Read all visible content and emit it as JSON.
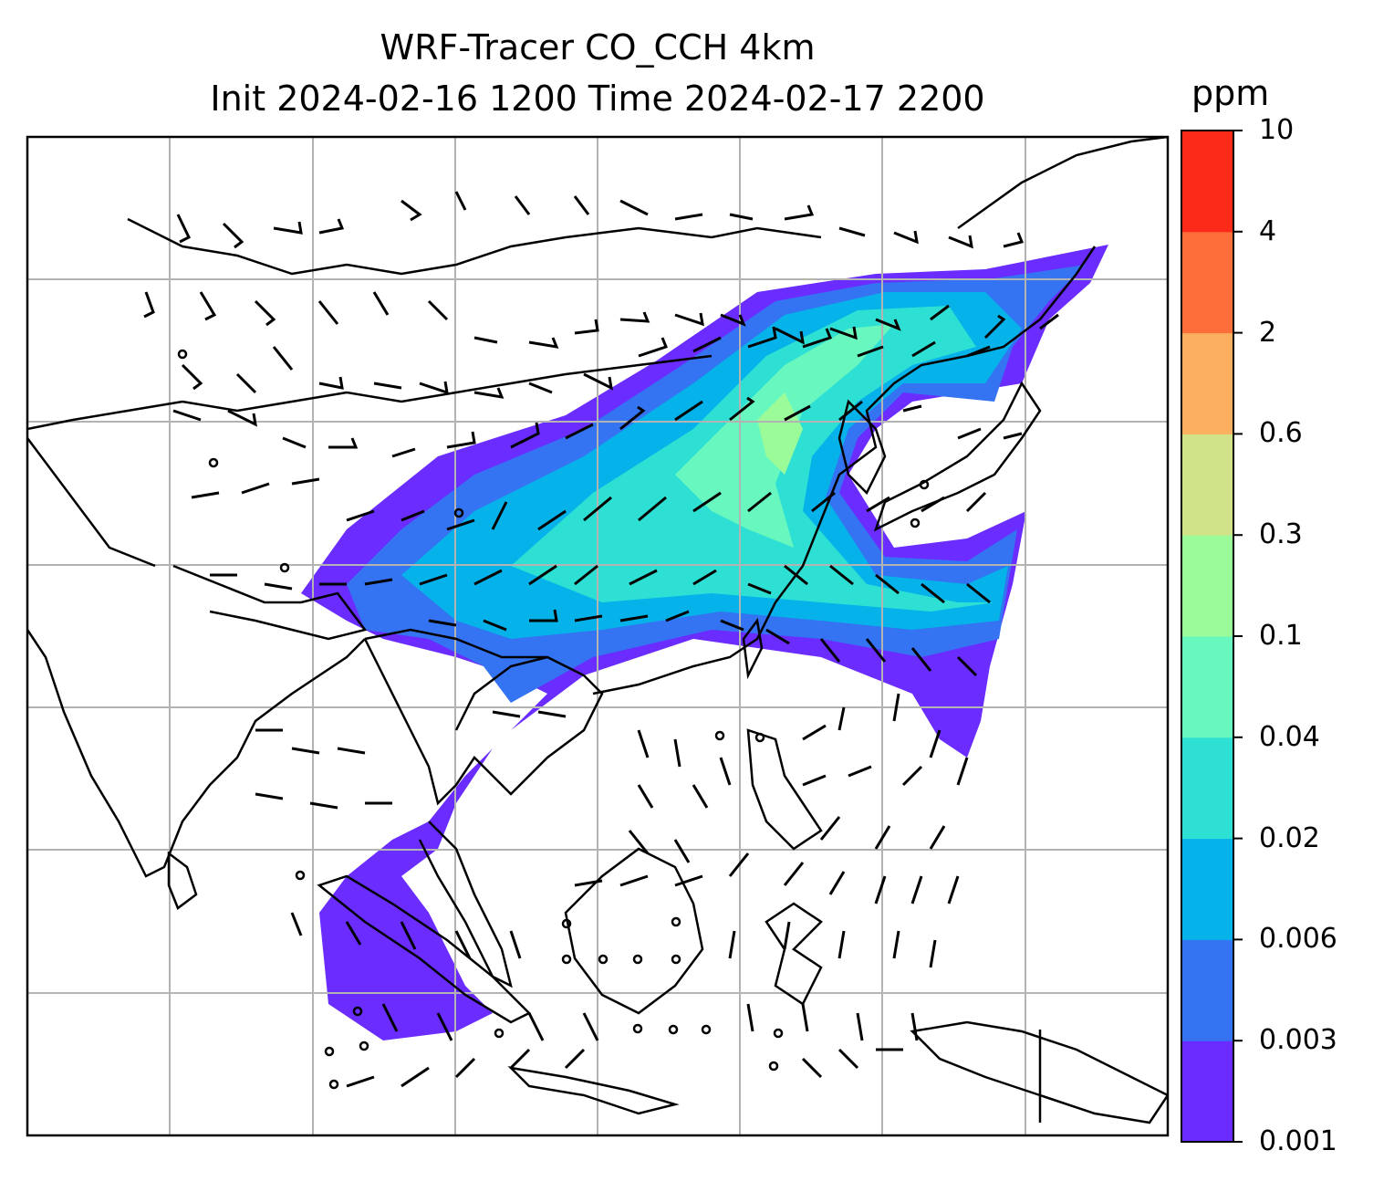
{
  "title_line1": "WRF-Tracer CO_CCH 4km",
  "title_line2": "Init 2024-02-16 1200 Time 2024-02-17 2200",
  "colorbar": {
    "unit": "ppm",
    "ticks": [
      "0.001",
      "0.003",
      "0.006",
      "0.02",
      "0.04",
      "0.1",
      "0.3",
      "0.6",
      "2",
      "4",
      "10"
    ],
    "colors": [
      "#6a2cff",
      "#3473f2",
      "#05b3ea",
      "#2ee0d3",
      "#68f7be",
      "#9afb98",
      "#cfe288",
      "#fcb05f",
      "#fd6e3a",
      "#fc2a19"
    ]
  },
  "map": {
    "coastline_color": "#000000",
    "gridline_color": "#b3b3b3",
    "barb_color": "#000000"
  }
}
